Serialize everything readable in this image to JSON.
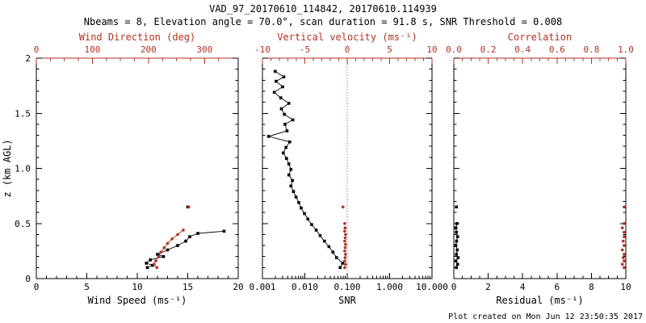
{
  "title": "VAD_97_20170610_114842, 20170610.114939",
  "subtitle": "Nbeams = 8, Elevation angle = 70.0°, scan duration = 91.8 s, SNR Threshold = 0.008",
  "footer": "Plot created on Mon Jun 12 23:50:35 2017",
  "colors": {
    "red": "#b23222",
    "black": "#000000"
  },
  "y_axis": {
    "label": "z (km AGL)",
    "range": [
      0,
      2
    ],
    "ticks": [
      0,
      0.5,
      1.0,
      1.5,
      2
    ],
    "tick_labels": [
      "0",
      "0.5",
      "1.0",
      "1.5",
      "2"
    ],
    "minor_step": 0.1
  },
  "chart_data": [
    {
      "type": "scatter",
      "name": "wind",
      "show_y_labels": true,
      "bottom_axis": {
        "label": "Wind Speed (ms⁻¹)",
        "scale": "linear",
        "range": [
          0,
          20
        ],
        "ticks": [
          0,
          5,
          10,
          15,
          20
        ],
        "tick_labels": [
          "0",
          "5",
          "10",
          "15",
          "20"
        ],
        "minor_step": 1
      },
      "top_axis": {
        "label": "Wind Direction (deg)",
        "scale": "linear",
        "range": [
          0,
          360
        ],
        "ticks": [
          0,
          100,
          200,
          300
        ],
        "tick_labels": [
          "0",
          "100",
          "200",
          "300"
        ],
        "minor_step": 25
      },
      "series": [
        {
          "name": "wind-speed",
          "axis": "bottom",
          "color": "black",
          "marker": "square",
          "line": true,
          "points": [
            [
              11.0,
              0.1
            ],
            [
              11.5,
              0.12
            ],
            [
              10.9,
              0.14
            ],
            [
              11.3,
              0.17
            ],
            [
              12.6,
              0.2
            ],
            [
              12.0,
              0.22
            ],
            [
              13.0,
              0.26
            ],
            [
              14.0,
              0.3
            ],
            [
              14.8,
              0.34
            ],
            [
              15.2,
              0.38
            ],
            [
              16.0,
              0.41
            ],
            [
              18.6,
              0.43
            ]
          ]
        },
        {
          "name": "wind-speed-upper",
          "axis": "bottom",
          "color": "black",
          "marker": "square",
          "line": false,
          "points": [
            [
              15.0,
              0.65
            ]
          ]
        },
        {
          "name": "wind-direction",
          "axis": "top",
          "color": "red",
          "marker": "circle",
          "line": true,
          "points": [
            [
              215,
              0.1
            ],
            [
              210,
              0.13
            ],
            [
              213,
              0.16
            ],
            [
              218,
              0.2
            ],
            [
              222,
              0.24
            ],
            [
              228,
              0.28
            ],
            [
              234,
              0.32
            ],
            [
              242,
              0.36
            ],
            [
              252,
              0.4
            ],
            [
              262,
              0.44
            ]
          ]
        },
        {
          "name": "wind-direction-upper",
          "axis": "top",
          "color": "red",
          "marker": "circle",
          "line": false,
          "points": [
            [
              272,
              0.65
            ]
          ]
        }
      ]
    },
    {
      "type": "scatter",
      "name": "snr",
      "show_y_labels": false,
      "bottom_axis": {
        "label": "SNR",
        "scale": "log",
        "range": [
          0.001,
          10
        ],
        "ticks": [
          0.001,
          0.01,
          0.1,
          1,
          10
        ],
        "tick_labels": [
          "0.001",
          "0.010",
          "0.100",
          "1.000",
          "10.000"
        ]
      },
      "top_axis": {
        "label": "Vertical velocity (ms⁻¹)",
        "scale": "linear",
        "range": [
          -10,
          10
        ],
        "ticks": [
          -10,
          -5,
          0,
          5,
          10
        ],
        "tick_labels": [
          "-10",
          "-5",
          "0",
          "5",
          "10"
        ],
        "minor_step": 1
      },
      "reference_line": {
        "axis": "top",
        "value": 0,
        "color": "red",
        "style": "dotted"
      },
      "series": [
        {
          "name": "snr-profile",
          "axis": "bottom",
          "color": "black",
          "marker": "square",
          "line": true,
          "points": [
            [
              0.002,
              1.88
            ],
            [
              0.0032,
              1.83
            ],
            [
              0.0021,
              1.79
            ],
            [
              0.003,
              1.74
            ],
            [
              0.0019,
              1.69
            ],
            [
              0.0027,
              1.64
            ],
            [
              0.0042,
              1.59
            ],
            [
              0.0028,
              1.54
            ],
            [
              0.0033,
              1.49
            ],
            [
              0.0052,
              1.44
            ],
            [
              0.0034,
              1.4
            ],
            [
              0.0038,
              1.34
            ],
            [
              0.0014,
              1.29
            ],
            [
              0.0044,
              1.24
            ],
            [
              0.0036,
              1.19
            ],
            [
              0.0031,
              1.14
            ],
            [
              0.0037,
              1.09
            ],
            [
              0.0042,
              1.04
            ],
            [
              0.0047,
              0.99
            ],
            [
              0.0042,
              0.94
            ],
            [
              0.0051,
              0.89
            ],
            [
              0.0047,
              0.84
            ],
            [
              0.0054,
              0.79
            ],
            [
              0.0062,
              0.74
            ],
            [
              0.0072,
              0.69
            ],
            [
              0.0082,
              0.64
            ],
            [
              0.0098,
              0.59
            ],
            [
              0.0118,
              0.54
            ],
            [
              0.0145,
              0.49
            ],
            [
              0.0185,
              0.44
            ],
            [
              0.023,
              0.39
            ],
            [
              0.029,
              0.34
            ],
            [
              0.037,
              0.29
            ],
            [
              0.046,
              0.24
            ],
            [
              0.056,
              0.19
            ],
            [
              0.078,
              0.14
            ],
            [
              0.068,
              0.1
            ]
          ]
        },
        {
          "name": "vertical-velocity",
          "axis": "top",
          "color": "red",
          "marker": "circle",
          "line": false,
          "points": [
            [
              -0.3,
              0.1
            ],
            [
              -0.2,
              0.13
            ],
            [
              -0.3,
              0.16
            ],
            [
              -0.25,
              0.19
            ],
            [
              -0.2,
              0.22
            ],
            [
              -0.3,
              0.25
            ],
            [
              -0.25,
              0.28
            ],
            [
              -0.2,
              0.31
            ],
            [
              -0.3,
              0.34
            ],
            [
              -0.25,
              0.37
            ],
            [
              -0.2,
              0.4
            ],
            [
              -0.3,
              0.43
            ],
            [
              -0.25,
              0.46
            ],
            [
              -0.3,
              0.5
            ]
          ]
        },
        {
          "name": "vertical-velocity-upper",
          "axis": "top",
          "color": "red",
          "marker": "circle",
          "line": false,
          "points": [
            [
              -0.5,
              0.65
            ]
          ]
        }
      ]
    },
    {
      "type": "scatter",
      "name": "residual",
      "show_y_labels": false,
      "bottom_axis": {
        "label": "Residual (ms⁻¹)",
        "scale": "linear",
        "range": [
          0,
          10
        ],
        "ticks": [
          0,
          2,
          4,
          6,
          8,
          10
        ],
        "tick_labels": [
          "0",
          "2",
          "4",
          "6",
          "8",
          "10"
        ],
        "minor_step": 0.5
      },
      "top_axis": {
        "label": "Correlation",
        "scale": "linear",
        "range": [
          0,
          1
        ],
        "ticks": [
          0,
          0.2,
          0.4,
          0.6,
          0.8,
          1.0
        ],
        "tick_labels": [
          "0.0",
          "0.2",
          "0.4",
          "0.6",
          "0.8",
          "1.0"
        ],
        "minor_step": 0.05
      },
      "series": [
        {
          "name": "residual-profile",
          "axis": "bottom",
          "color": "black",
          "marker": "square",
          "line": true,
          "points": [
            [
              0.15,
              0.1
            ],
            [
              0.22,
              0.13
            ],
            [
              0.12,
              0.16
            ],
            [
              0.25,
              0.19
            ],
            [
              0.15,
              0.22
            ],
            [
              0.2,
              0.26
            ],
            [
              0.12,
              0.3
            ],
            [
              0.16,
              0.34
            ],
            [
              0.22,
              0.38
            ],
            [
              0.15,
              0.42
            ],
            [
              0.12,
              0.46
            ],
            [
              0.18,
              0.5
            ]
          ]
        },
        {
          "name": "residual-upper",
          "axis": "bottom",
          "color": "black",
          "marker": "square",
          "line": false,
          "points": [
            [
              0.15,
              0.65
            ]
          ]
        },
        {
          "name": "correlation",
          "axis": "top",
          "color": "red",
          "marker": "circle",
          "line": false,
          "points": [
            [
              0.99,
              0.1
            ],
            [
              0.98,
              0.13
            ],
            [
              0.99,
              0.16
            ],
            [
              0.985,
              0.19
            ],
            [
              0.99,
              0.22
            ],
            [
              0.98,
              0.26
            ],
            [
              0.99,
              0.3
            ],
            [
              0.985,
              0.34
            ],
            [
              0.99,
              0.38
            ],
            [
              0.99,
              0.42
            ],
            [
              0.98,
              0.46
            ],
            [
              0.99,
              0.5
            ]
          ]
        },
        {
          "name": "correlation-upper",
          "axis": "top",
          "color": "red",
          "marker": "circle",
          "line": false,
          "points": [
            [
              0.99,
              0.65
            ]
          ]
        }
      ]
    }
  ]
}
